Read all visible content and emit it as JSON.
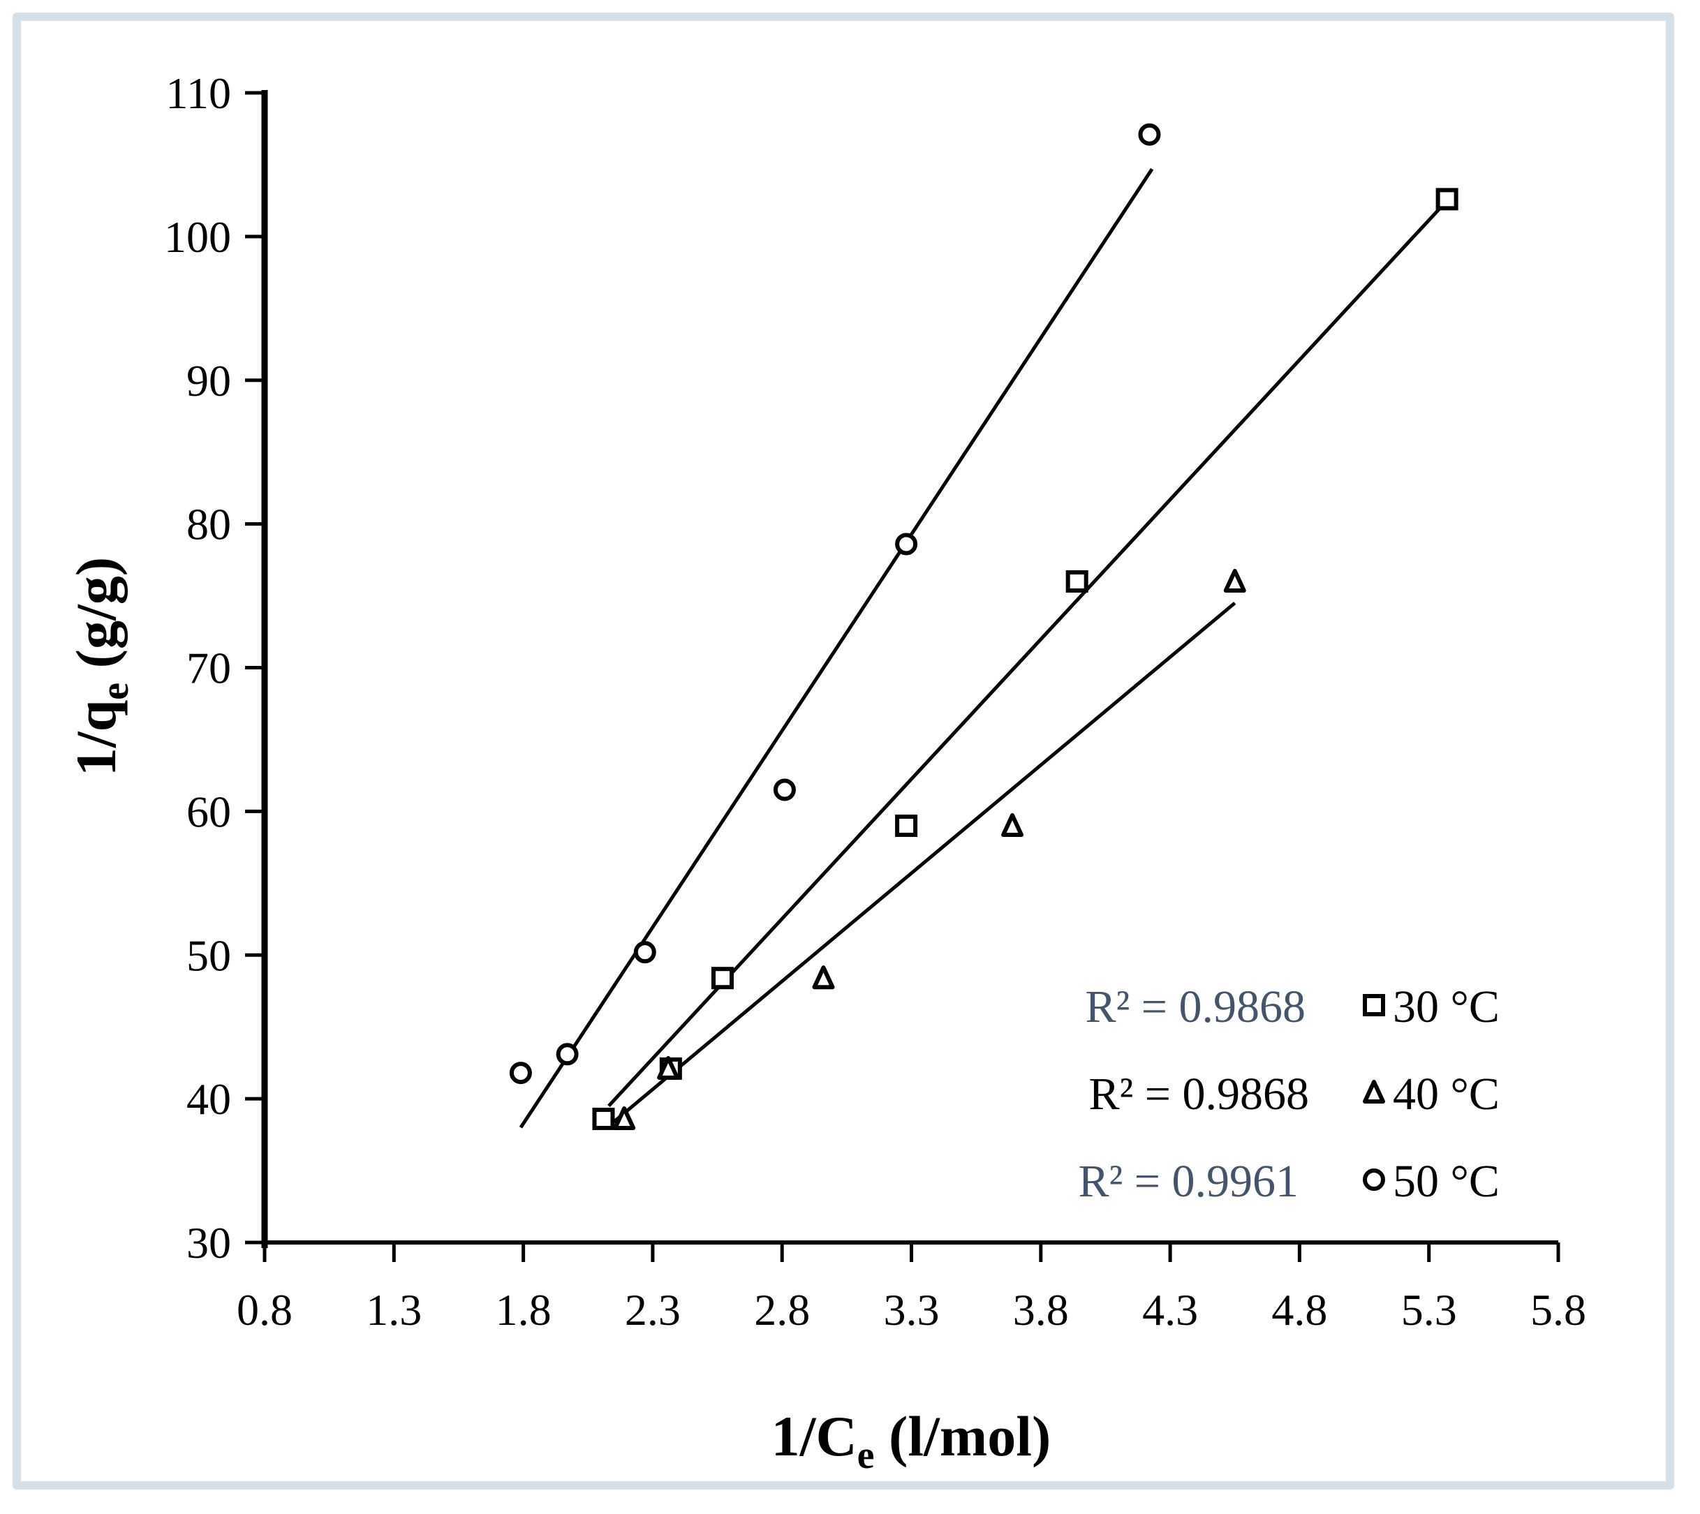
{
  "chart_data": {
    "type": "scatter",
    "title": "",
    "xlabel": "1/Ce (l/mol)",
    "ylabel": "1/qe (g/g)",
    "xlim": [
      0.8,
      5.8
    ],
    "ylim": [
      30,
      110
    ],
    "xticks": [
      "0.8",
      "1.3",
      "1.8",
      "2.3",
      "2.8",
      "3.3",
      "3.8",
      "4.3",
      "4.8",
      "5.3",
      "5.8"
    ],
    "yticks": [
      "30",
      "40",
      "50",
      "60",
      "70",
      "80",
      "90",
      "100",
      "110"
    ],
    "grid": false,
    "legend_position": "lower right inside",
    "series": [
      {
        "name": "30 °C",
        "marker": "square",
        "r2": "R² = 0.9868",
        "r2_color": "#44546a",
        "x": [
          2.11,
          2.37,
          2.57,
          3.28,
          3.94,
          5.37
        ],
        "y": [
          38.6,
          42.1,
          48.4,
          59.0,
          76.0,
          102.6
        ],
        "trendline": {
          "x": [
            2.13,
            5.37
          ],
          "y": [
            39.5,
            102.5
          ]
        }
      },
      {
        "name": "40 °C",
        "marker": "triangle",
        "r2": "R² = 0.9868",
        "r2_color": "#000000",
        "x": [
          2.19,
          2.36,
          2.96,
          3.69,
          4.55
        ],
        "y": [
          38.6,
          42.1,
          48.4,
          59.0,
          76.0
        ],
        "trendline": {
          "x": [
            2.15,
            4.55
          ],
          "y": [
            38.4,
            74.5
          ]
        }
      },
      {
        "name": "50 °C",
        "marker": "circle",
        "r2": "R² = 0.9961",
        "r2_color": "#44546a",
        "x": [
          1.79,
          1.97,
          2.27,
          2.81,
          3.28,
          4.22
        ],
        "y": [
          41.8,
          43.1,
          50.2,
          61.5,
          78.6,
          107.1
        ],
        "trendline": {
          "x": [
            1.79,
            4.23
          ],
          "y": [
            38.0,
            104.7
          ]
        }
      }
    ]
  },
  "labels": {
    "xlabel_main": "1/C",
    "xlabel_sub": "e",
    "xlabel_unit": " (l/mol)",
    "ylabel_main": "1/q",
    "ylabel_sub": "e",
    "ylabel_unit": " (g/g)"
  }
}
